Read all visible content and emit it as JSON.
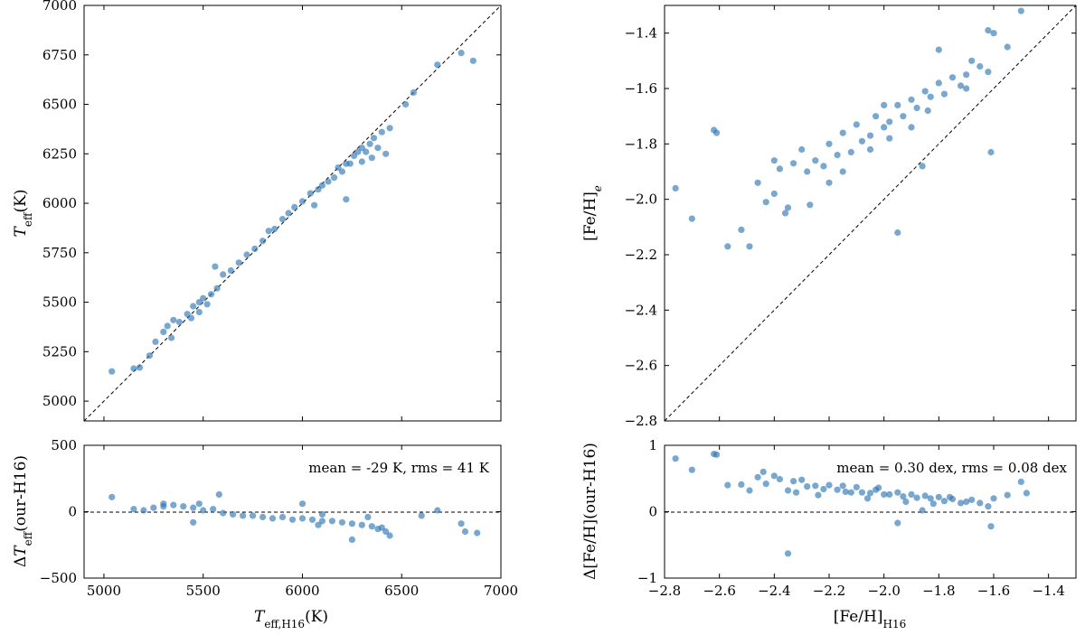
{
  "chart_data": [
    {
      "id": "teff_main",
      "type": "scatter",
      "ylabel": "T_eff(K)",
      "xlim": [
        4900,
        7000
      ],
      "ylim": [
        4900,
        7000
      ],
      "xticks": [
        "5000",
        "5500",
        "6000",
        "6500",
        "7000"
      ],
      "yticks": [
        "5000",
        "5250",
        "5500",
        "5750",
        "6000",
        "6250",
        "6500",
        "6750",
        "7000"
      ],
      "one_to_one_line": true,
      "color": "#2f78b5",
      "points": [
        [
          5040,
          5150
        ],
        [
          5150,
          5165
        ],
        [
          5180,
          5170
        ],
        [
          5230,
          5230
        ],
        [
          5260,
          5300
        ],
        [
          5300,
          5350
        ],
        [
          5320,
          5380
        ],
        [
          5350,
          5410
        ],
        [
          5380,
          5400
        ],
        [
          5420,
          5440
        ],
        [
          5440,
          5420
        ],
        [
          5450,
          5480
        ],
        [
          5480,
          5500
        ],
        [
          5500,
          5520
        ],
        [
          5520,
          5490
        ],
        [
          5540,
          5540
        ],
        [
          5570,
          5570
        ],
        [
          5560,
          5680
        ],
        [
          5600,
          5640
        ],
        [
          5640,
          5660
        ],
        [
          5680,
          5700
        ],
        [
          5720,
          5740
        ],
        [
          5760,
          5770
        ],
        [
          5800,
          5810
        ],
        [
          5830,
          5860
        ],
        [
          5860,
          5870
        ],
        [
          5900,
          5920
        ],
        [
          5930,
          5950
        ],
        [
          5960,
          5980
        ],
        [
          6000,
          6010
        ],
        [
          6040,
          6050
        ],
        [
          6060,
          5990
        ],
        [
          6080,
          6070
        ],
        [
          6100,
          6090
        ],
        [
          6130,
          6110
        ],
        [
          6160,
          6130
        ],
        [
          6180,
          6180
        ],
        [
          6200,
          6160
        ],
        [
          6220,
          6200
        ],
        [
          6240,
          6200
        ],
        [
          6260,
          6240
        ],
        [
          6280,
          6260
        ],
        [
          6300,
          6280
        ],
        [
          6320,
          6260
        ],
        [
          6340,
          6300
        ],
        [
          6360,
          6330
        ],
        [
          6380,
          6280
        ],
        [
          6400,
          6360
        ],
        [
          6420,
          6250
        ],
        [
          6440,
          6380
        ],
        [
          6520,
          6500
        ],
        [
          6560,
          6560
        ],
        [
          6680,
          6700
        ],
        [
          6800,
          6760
        ],
        [
          6860,
          6720
        ],
        [
          6220,
          6020
        ],
        [
          5480,
          5450
        ],
        [
          5340,
          5320
        ],
        [
          6300,
          6210
        ],
        [
          6350,
          6230
        ]
      ]
    },
    {
      "id": "teff_resid",
      "type": "scatter",
      "ylabel": "ΔT_eff(our-H16)",
      "xlabel": "T_eff,H16(K)",
      "xlim": [
        4900,
        7000
      ],
      "ylim": [
        -500,
        500
      ],
      "xticks": [
        "5000",
        "5500",
        "6000",
        "6500",
        "7000"
      ],
      "yticks": [
        "−500",
        "0",
        "500"
      ],
      "annotation": "mean = -29 K, rms = 41 K",
      "zero_line": true,
      "color": "#2f78b5",
      "points": [
        [
          5040,
          110
        ],
        [
          5150,
          20
        ],
        [
          5200,
          10
        ],
        [
          5250,
          30
        ],
        [
          5300,
          40
        ],
        [
          5350,
          50
        ],
        [
          5400,
          40
        ],
        [
          5450,
          30
        ],
        [
          5500,
          10
        ],
        [
          5550,
          20
        ],
        [
          5580,
          130
        ],
        [
          5600,
          -10
        ],
        [
          5650,
          -20
        ],
        [
          5700,
          -30
        ],
        [
          5750,
          -30
        ],
        [
          5800,
          -40
        ],
        [
          5850,
          -50
        ],
        [
          5900,
          -40
        ],
        [
          5950,
          -60
        ],
        [
          6000,
          -50
        ],
        [
          6050,
          -60
        ],
        [
          6080,
          -100
        ],
        [
          6100,
          -70
        ],
        [
          6150,
          -70
        ],
        [
          6200,
          -80
        ],
        [
          6250,
          -90
        ],
        [
          6300,
          -100
        ],
        [
          6350,
          -110
        ],
        [
          6380,
          -130
        ],
        [
          6400,
          -120
        ],
        [
          6420,
          -150
        ],
        [
          6440,
          -180
        ],
        [
          6250,
          -210
        ],
        [
          5450,
          -80
        ],
        [
          6600,
          -30
        ],
        [
          6680,
          10
        ],
        [
          6800,
          -90
        ],
        [
          6820,
          -150
        ],
        [
          6880,
          -160
        ],
        [
          6000,
          60
        ],
        [
          5300,
          60
        ],
        [
          5480,
          60
        ],
        [
          6100,
          -20
        ],
        [
          6330,
          -40
        ]
      ]
    },
    {
      "id": "feh_main",
      "type": "scatter",
      "ylabel": "[Fe/H]_e",
      "xlim": [
        -2.8,
        -1.3
      ],
      "ylim": [
        -2.8,
        -1.3
      ],
      "xticks": [
        "−2.8",
        "−2.6",
        "−2.4",
        "−2.2",
        "−2.0",
        "−1.8",
        "−1.6",
        "−1.4"
      ],
      "yticks": [
        "−2.8",
        "−2.6",
        "−2.4",
        "−2.2",
        "−2.0",
        "−1.8",
        "−1.6",
        "−1.4"
      ],
      "one_to_one_line": true,
      "color": "#2f78b5",
      "points": [
        [
          -2.76,
          -1.96
        ],
        [
          -2.7,
          -2.07
        ],
        [
          -2.62,
          -1.75
        ],
        [
          -2.61,
          -1.76
        ],
        [
          -2.57,
          -2.17
        ],
        [
          -2.52,
          -2.11
        ],
        [
          -2.49,
          -2.17
        ],
        [
          -2.46,
          -1.94
        ],
        [
          -2.43,
          -2.01
        ],
        [
          -2.4,
          -1.98
        ],
        [
          -2.38,
          -1.89
        ],
        [
          -2.35,
          -2.03
        ],
        [
          -2.33,
          -1.87
        ],
        [
          -2.3,
          -1.82
        ],
        [
          -2.28,
          -1.9
        ],
        [
          -2.25,
          -1.86
        ],
        [
          -2.22,
          -1.88
        ],
        [
          -2.2,
          -1.8
        ],
        [
          -2.17,
          -1.84
        ],
        [
          -2.15,
          -1.76
        ],
        [
          -2.12,
          -1.83
        ],
        [
          -2.1,
          -1.73
        ],
        [
          -2.08,
          -1.79
        ],
        [
          -2.05,
          -1.77
        ],
        [
          -2.03,
          -1.7
        ],
        [
          -2.0,
          -1.74
        ],
        [
          -1.98,
          -1.72
        ],
        [
          -1.95,
          -1.66
        ],
        [
          -1.93,
          -1.7
        ],
        [
          -1.9,
          -1.64
        ],
        [
          -1.88,
          -1.67
        ],
        [
          -1.85,
          -1.61
        ],
        [
          -1.83,
          -1.63
        ],
        [
          -1.8,
          -1.58
        ],
        [
          -1.78,
          -1.62
        ],
        [
          -1.75,
          -1.56
        ],
        [
          -1.72,
          -1.59
        ],
        [
          -1.7,
          -1.55
        ],
        [
          -1.68,
          -1.5
        ],
        [
          -1.65,
          -1.52
        ],
        [
          -1.62,
          -1.54
        ],
        [
          -1.6,
          -1.4
        ],
        [
          -1.55,
          -1.45
        ],
        [
          -1.5,
          -1.32
        ],
        [
          -1.62,
          -1.39
        ],
        [
          -1.61,
          -1.83
        ],
        [
          -1.95,
          -2.12
        ],
        [
          -1.86,
          -1.88
        ],
        [
          -1.8,
          -1.46
        ],
        [
          -2.36,
          -2.05
        ],
        [
          -2.4,
          -1.86
        ],
        [
          -2.27,
          -2.02
        ],
        [
          -2.0,
          -1.66
        ],
        [
          -1.9,
          -1.74
        ],
        [
          -1.7,
          -1.6
        ],
        [
          -2.15,
          -1.9
        ],
        [
          -2.2,
          -1.94
        ],
        [
          -1.98,
          -1.78
        ],
        [
          -1.84,
          -1.68
        ],
        [
          -2.05,
          -1.82
        ]
      ]
    },
    {
      "id": "feh_resid",
      "type": "scatter",
      "ylabel": "Δ[Fe/H](our-H16)",
      "xlabel": "[Fe/H]_H16",
      "xlim": [
        -2.8,
        -1.3
      ],
      "ylim": [
        -1,
        1
      ],
      "xticks": [
        "−2.8",
        "−2.6",
        "−2.4",
        "−2.2",
        "−2.0",
        "−1.8",
        "−1.6",
        "−1.4"
      ],
      "yticks": [
        "−1",
        "0",
        "1"
      ],
      "annotation": "mean = 0.30 dex, rms = 0.08 dex",
      "zero_line": true,
      "color": "#2f78b5",
      "points": [
        [
          -2.76,
          0.8
        ],
        [
          -2.7,
          0.63
        ],
        [
          -2.62,
          0.87
        ],
        [
          -2.61,
          0.86
        ],
        [
          -2.57,
          0.4
        ],
        [
          -2.52,
          0.41
        ],
        [
          -2.49,
          0.32
        ],
        [
          -2.46,
          0.52
        ],
        [
          -2.43,
          0.42
        ],
        [
          -2.4,
          0.54
        ],
        [
          -2.38,
          0.49
        ],
        [
          -2.35,
          0.32
        ],
        [
          -2.33,
          0.46
        ],
        [
          -2.3,
          0.48
        ],
        [
          -2.28,
          0.38
        ],
        [
          -2.25,
          0.39
        ],
        [
          -2.22,
          0.34
        ],
        [
          -2.2,
          0.4
        ],
        [
          -2.17,
          0.33
        ],
        [
          -2.15,
          0.39
        ],
        [
          -2.12,
          0.29
        ],
        [
          -2.1,
          0.37
        ],
        [
          -2.08,
          0.29
        ],
        [
          -2.05,
          0.28
        ],
        [
          -2.03,
          0.33
        ],
        [
          -2.0,
          0.26
        ],
        [
          -1.98,
          0.26
        ],
        [
          -1.95,
          0.29
        ],
        [
          -1.93,
          0.23
        ],
        [
          -1.9,
          0.26
        ],
        [
          -1.88,
          0.21
        ],
        [
          -1.85,
          0.24
        ],
        [
          -1.83,
          0.2
        ],
        [
          -1.8,
          0.22
        ],
        [
          -1.78,
          0.16
        ],
        [
          -1.75,
          0.19
        ],
        [
          -1.72,
          0.13
        ],
        [
          -1.7,
          0.15
        ],
        [
          -1.68,
          0.18
        ],
        [
          -1.65,
          0.13
        ],
        [
          -1.62,
          0.08
        ],
        [
          -1.6,
          0.2
        ],
        [
          -1.55,
          0.25
        ],
        [
          -1.5,
          0.45
        ],
        [
          -1.48,
          0.28
        ],
        [
          -1.61,
          -0.22
        ],
        [
          -1.95,
          -0.17
        ],
        [
          -1.86,
          0.02
        ],
        [
          -2.35,
          -0.63
        ],
        [
          -2.32,
          0.29
        ],
        [
          -2.24,
          0.25
        ],
        [
          -2.06,
          0.2
        ],
        [
          -1.92,
          0.15
        ],
        [
          -1.82,
          0.12
        ],
        [
          -2.44,
          0.6
        ],
        [
          -2.14,
          0.3
        ],
        [
          -2.02,
          0.36
        ],
        [
          -1.76,
          0.22
        ]
      ]
    }
  ]
}
